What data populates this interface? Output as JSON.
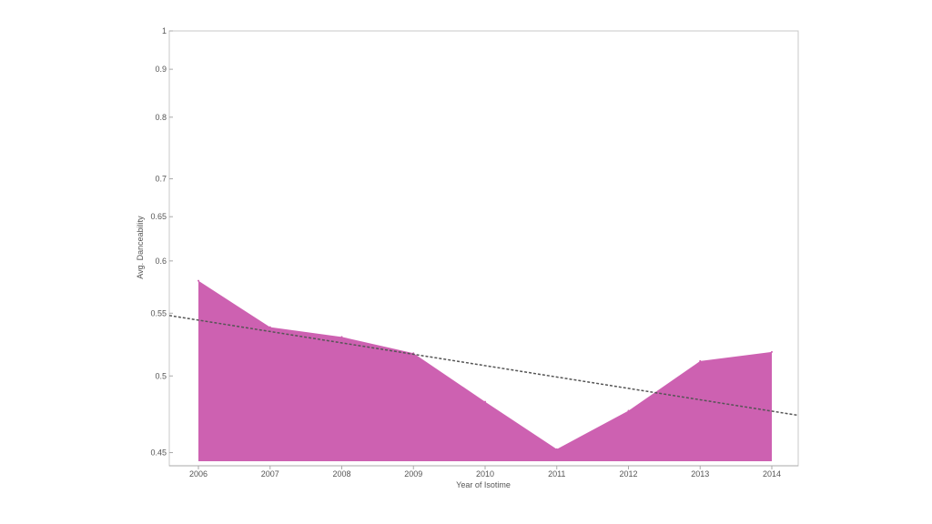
{
  "chart_data": {
    "type": "area",
    "title": "",
    "xlabel": "Year of Isotime",
    "ylabel": "Avg. Danceability",
    "y_scale": "reciprocal",
    "categories": [
      "2006",
      "2007",
      "2008",
      "2009",
      "2010",
      "2011",
      "2012",
      "2013",
      "2014"
    ],
    "values": [
      0.58,
      0.538,
      0.53,
      0.517,
      0.482,
      0.452,
      0.476,
      0.511,
      0.518
    ],
    "area_base": 0.445,
    "yticks": [
      "1",
      "0.9",
      "0.8",
      "0.7",
      "0.65",
      "0.6",
      "0.55",
      "0.5",
      "0.45"
    ],
    "ylim": [
      0.445,
      1
    ],
    "trend_line": {
      "style": "dashed",
      "start": 0.548,
      "end": 0.473
    },
    "grid": false,
    "legend": "none",
    "colors": {
      "area": "#cd61b1",
      "trend": "#555555",
      "axis": "#aaaaaa"
    }
  }
}
